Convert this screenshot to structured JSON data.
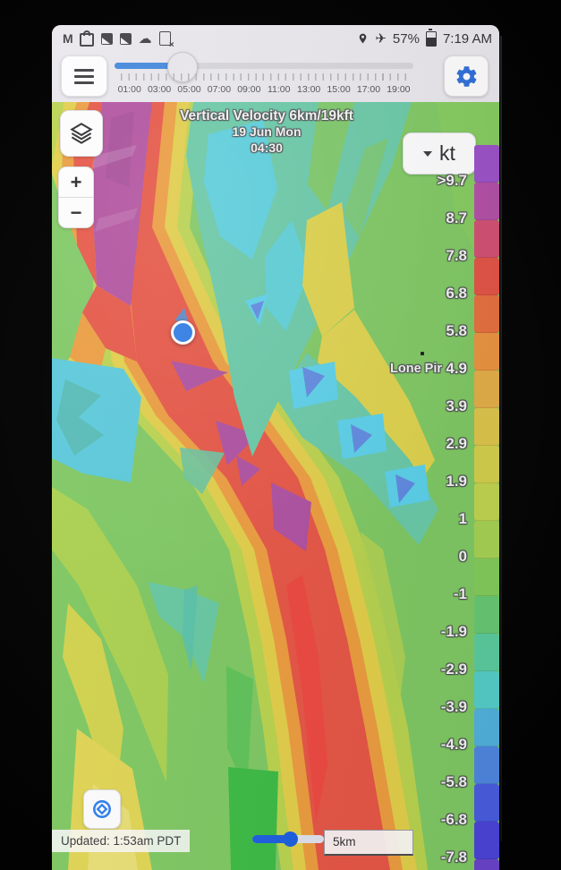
{
  "status_bar": {
    "time": "7:19 AM",
    "battery": "57%",
    "notification_icons": [
      "gmail-icon",
      "shopping-bag-icon",
      "photos-icon",
      "photos-icon",
      "cloud-icon",
      "screenshot-dismiss-icon"
    ],
    "status_icons": [
      "location-icon",
      "airplane-mode-icon",
      "battery-icon"
    ]
  },
  "toolbar": {
    "time_labels": [
      "01:00",
      "03:00",
      "05:00",
      "07:00",
      "09:00",
      "11:00",
      "13:00",
      "15:00",
      "17:00",
      "19:00"
    ],
    "selected_time": "04:30"
  },
  "map": {
    "title": "Vertical Velocity 6km/19kft",
    "date": "19 Jun Mon",
    "time": "04:30",
    "unit_button": "kt",
    "place_label": "Lone Pir",
    "zoom_in": "+",
    "zoom_out": "−"
  },
  "legend": {
    "unit": "kt",
    "labels": [
      ">9.7",
      "8.7",
      "7.8",
      "6.8",
      "5.8",
      "4.9",
      "3.9",
      "2.9",
      "1.9",
      "1",
      "0",
      "-1",
      "-1.9",
      "-2.9",
      "-3.9",
      "-4.9",
      "-5.8",
      "-6.8",
      "-7.8"
    ],
    "colors": [
      "#9b51c8",
      "#b34fa6",
      "#d24f72",
      "#e25345",
      "#e66f3f",
      "#ea9340",
      "#e3ae49",
      "#ddc44b",
      "#d3cf4c",
      "#c0d44f",
      "#a6d154",
      "#82cb5a",
      "#67c873",
      "#5bcb9e",
      "#55cdc9",
      "#52b1dd",
      "#4f86e0",
      "#4a5ce0",
      "#4b44d8",
      "#6a44cc"
    ]
  },
  "footer": {
    "updated": "Updated: 1:53am PDT",
    "scale": "5km"
  }
}
